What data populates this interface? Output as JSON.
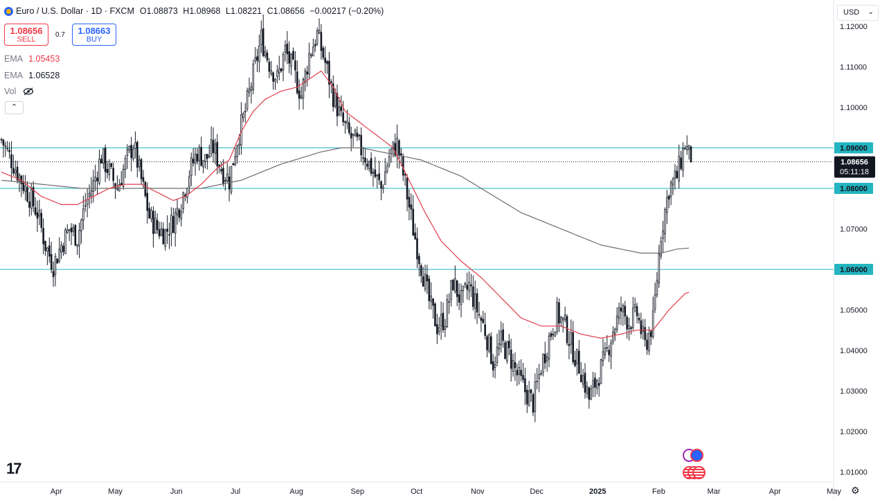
{
  "header": {
    "title": "Euro / U.S. Dollar · 1D · FXCM",
    "ohlc": [
      {
        "label": "O",
        "value": "1.08873"
      },
      {
        "label": "H",
        "value": "1.08968"
      },
      {
        "label": "L",
        "value": "1.08221"
      },
      {
        "label": "C",
        "value": "1.08656"
      }
    ],
    "change": "−0.00217 (−0.20%)"
  },
  "trade": {
    "sell_price": "1.08656",
    "sell_label": "SELL",
    "spread": "0.7",
    "buy_price": "1.08663",
    "buy_label": "BUY"
  },
  "indicators": [
    {
      "name": "EMA",
      "value": "1.05453",
      "color": "#f23645"
    },
    {
      "name": "EMA",
      "value": "1.06528",
      "color": "#131722"
    }
  ],
  "volume_label": "Vol",
  "currency": "USD",
  "price_tag": {
    "price": "1.08656",
    "countdown": "05:11:18"
  },
  "colors": {
    "up": "#131722",
    "down": "#131722",
    "ema_fast": "#e03b4a",
    "ema_slow": "#6b6b6b",
    "level": "#22b5c0",
    "bg": "#ffffff"
  },
  "chart_data": {
    "type": "candlestick",
    "symbol": "EUR/USD",
    "interval": "1D",
    "ylim": [
      1.0075,
      1.1265
    ],
    "y_ticks": [
      "1.12000",
      "1.11000",
      "1.10000",
      "1.09000",
      "1.08000",
      "1.07000",
      "1.06000",
      "1.05000",
      "1.04000",
      "1.03000",
      "1.02000",
      "1.01000"
    ],
    "x_ticks": [
      "Apr",
      "May",
      "Jun",
      "Jul",
      "Aug",
      "Sep",
      "Oct",
      "Nov",
      "Dec",
      "2025",
      "Feb",
      "Mar",
      "Apr",
      "May"
    ],
    "horizontal_levels": [
      {
        "label": "1.09000",
        "value": 1.09
      },
      {
        "label": "1.08000",
        "value": 1.08
      },
      {
        "label": "1.06000",
        "value": 1.06
      }
    ],
    "last_price": 1.08656,
    "close_path": [
      [
        0,
        1.092
      ],
      [
        6,
        1.086
      ],
      [
        12,
        1.08
      ],
      [
        18,
        1.074
      ],
      [
        22,
        1.066
      ],
      [
        26,
        1.061
      ],
      [
        30,
        1.066
      ],
      [
        34,
        1.07
      ],
      [
        38,
        1.068
      ],
      [
        42,
        1.076
      ],
      [
        46,
        1.081
      ],
      [
        50,
        1.088
      ],
      [
        54,
        1.084
      ],
      [
        58,
        1.08
      ],
      [
        62,
        1.086
      ],
      [
        66,
        1.091
      ],
      [
        70,
        1.082
      ],
      [
        74,
        1.073
      ],
      [
        78,
        1.07
      ],
      [
        82,
        1.069
      ],
      [
        86,
        1.072
      ],
      [
        90,
        1.077
      ],
      [
        94,
        1.084
      ],
      [
        98,
        1.089
      ],
      [
        102,
        1.087
      ],
      [
        106,
        1.09
      ],
      [
        110,
        1.085
      ],
      [
        114,
        1.082
      ],
      [
        118,
        1.092
      ],
      [
        122,
        1.099
      ],
      [
        126,
        1.108
      ],
      [
        130,
        1.117
      ],
      [
        134,
        1.111
      ],
      [
        138,
        1.107
      ],
      [
        142,
        1.114
      ],
      [
        146,
        1.109
      ],
      [
        150,
        1.103
      ],
      [
        154,
        1.113
      ],
      [
        158,
        1.118
      ],
      [
        162,
        1.111
      ],
      [
        166,
        1.103
      ],
      [
        170,
        1.097
      ],
      [
        174,
        1.093
      ],
      [
        178,
        1.091
      ],
      [
        182,
        1.088
      ],
      [
        186,
        1.084
      ],
      [
        190,
        1.08
      ],
      [
        194,
        1.088
      ],
      [
        198,
        1.091
      ],
      [
        202,
        1.081
      ],
      [
        206,
        1.07
      ],
      [
        210,
        1.061
      ],
      [
        214,
        1.052
      ],
      [
        218,
        1.046
      ],
      [
        222,
        1.048
      ],
      [
        226,
        1.057
      ],
      [
        230,
        1.052
      ],
      [
        234,
        1.056
      ],
      [
        238,
        1.05
      ],
      [
        242,
        1.045
      ],
      [
        246,
        1.037
      ],
      [
        250,
        1.042
      ],
      [
        254,
        1.039
      ],
      [
        258,
        1.034
      ],
      [
        262,
        1.03
      ],
      [
        266,
        1.027
      ],
      [
        270,
        1.036
      ],
      [
        274,
        1.043
      ],
      [
        278,
        1.049
      ],
      [
        282,
        1.046
      ],
      [
        286,
        1.04
      ],
      [
        290,
        1.035
      ],
      [
        294,
        1.028
      ],
      [
        298,
        1.033
      ],
      [
        302,
        1.038
      ],
      [
        306,
        1.045
      ],
      [
        310,
        1.05
      ],
      [
        314,
        1.047
      ],
      [
        318,
        1.049
      ],
      [
        322,
        1.041
      ],
      [
        326,
        1.047
      ],
      [
        330,
        1.069
      ],
      [
        334,
        1.08
      ],
      [
        338,
        1.083
      ],
      [
        342,
        1.091
      ],
      [
        345,
        1.0866
      ]
    ],
    "ema_fast": [
      [
        0,
        1.084
      ],
      [
        10,
        1.082
      ],
      [
        20,
        1.078
      ],
      [
        30,
        1.076
      ],
      [
        38,
        1.076
      ],
      [
        46,
        1.078
      ],
      [
        54,
        1.08
      ],
      [
        62,
        1.081
      ],
      [
        70,
        1.081
      ],
      [
        78,
        1.079
      ],
      [
        86,
        1.077
      ],
      [
        92,
        1.078
      ],
      [
        100,
        1.081
      ],
      [
        108,
        1.085
      ],
      [
        114,
        1.087
      ],
      [
        120,
        1.094
      ],
      [
        126,
        1.099
      ],
      [
        132,
        1.102
      ],
      [
        140,
        1.104
      ],
      [
        148,
        1.105
      ],
      [
        154,
        1.107
      ],
      [
        160,
        1.109
      ],
      [
        166,
        1.105
      ],
      [
        172,
        1.099
      ],
      [
        180,
        1.096
      ],
      [
        188,
        1.093
      ],
      [
        196,
        1.09
      ],
      [
        204,
        1.082
      ],
      [
        212,
        1.074
      ],
      [
        220,
        1.067
      ],
      [
        230,
        1.062
      ],
      [
        240,
        1.058
      ],
      [
        250,
        1.053
      ],
      [
        260,
        1.048
      ],
      [
        270,
        1.046
      ],
      [
        280,
        1.046
      ],
      [
        290,
        1.044
      ],
      [
        300,
        1.043
      ],
      [
        310,
        1.044
      ],
      [
        318,
        1.045
      ],
      [
        326,
        1.045
      ],
      [
        334,
        1.05
      ],
      [
        342,
        1.054
      ],
      [
        345,
        1.0545
      ]
    ],
    "ema_slow": [
      [
        0,
        1.082
      ],
      [
        20,
        1.081
      ],
      [
        40,
        1.08
      ],
      [
        60,
        1.08
      ],
      [
        80,
        1.08
      ],
      [
        100,
        1.08
      ],
      [
        120,
        1.082
      ],
      [
        140,
        1.086
      ],
      [
        160,
        1.089
      ],
      [
        170,
        1.09
      ],
      [
        180,
        1.09
      ],
      [
        190,
        1.089
      ],
      [
        200,
        1.088
      ],
      [
        210,
        1.087
      ],
      [
        220,
        1.085
      ],
      [
        230,
        1.083
      ],
      [
        240,
        1.08
      ],
      [
        250,
        1.077
      ],
      [
        260,
        1.074
      ],
      [
        270,
        1.072
      ],
      [
        280,
        1.07
      ],
      [
        290,
        1.068
      ],
      [
        300,
        1.066
      ],
      [
        310,
        1.065
      ],
      [
        320,
        1.064
      ],
      [
        330,
        1.064
      ],
      [
        338,
        1.065
      ],
      [
        345,
        1.0653
      ]
    ]
  }
}
